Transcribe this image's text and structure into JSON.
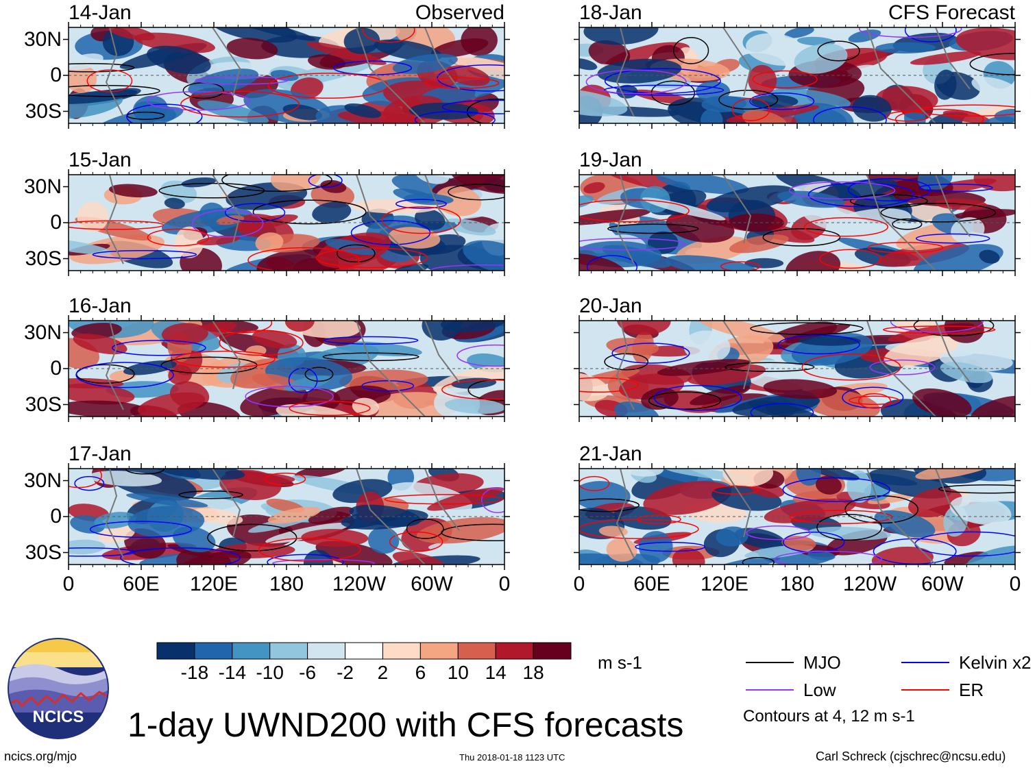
{
  "chart_data": {
    "type": "heatmap",
    "title": "1-day UWND200 with CFS forecasts",
    "variable": "UWND200",
    "units": "m s-1",
    "columns": [
      {
        "source": "Observed",
        "dates": [
          "14-Jan",
          "15-Jan",
          "16-Jan",
          "17-Jan"
        ]
      },
      {
        "source": "CFS Forecast",
        "dates": [
          "18-Jan",
          "19-Jan",
          "20-Jan",
          "21-Jan"
        ]
      }
    ],
    "lat_ticks": [
      "30N",
      "0",
      "30S"
    ],
    "lon_ticks": [
      "0",
      "60E",
      "120E",
      "180",
      "120W",
      "60W",
      "0"
    ],
    "lat_range": [
      -40,
      40
    ],
    "lon_range": [
      0,
      360
    ],
    "colorbar": {
      "levels": [
        "-18",
        "-14",
        "-10",
        "-6",
        "-2",
        "2",
        "6",
        "10",
        "14",
        "18"
      ],
      "colors": [
        "#08306b",
        "#2166ac",
        "#4393c3",
        "#92c5de",
        "#d1e5f0",
        "#ffffff",
        "#fddbc7",
        "#f4a582",
        "#d6604d",
        "#b2182b",
        "#67001f"
      ]
    },
    "contours": {
      "legend": [
        {
          "name": "MJO",
          "color": "#000000"
        },
        {
          "name": "Kelvin x2",
          "color": "#0000ff"
        },
        {
          "name": "Low",
          "color": "#9933ff"
        },
        {
          "name": "ER",
          "color": "#ff0000"
        }
      ],
      "note": "Contours at 4, 12 m s-1"
    }
  },
  "footer": {
    "website": "ncics.org/mjo",
    "timestamp": "Thu 2018-01-18 1123 UTC",
    "author": "Carl Schreck (cjschrec@ncsu.edu)",
    "logo_text": "NCICS"
  }
}
